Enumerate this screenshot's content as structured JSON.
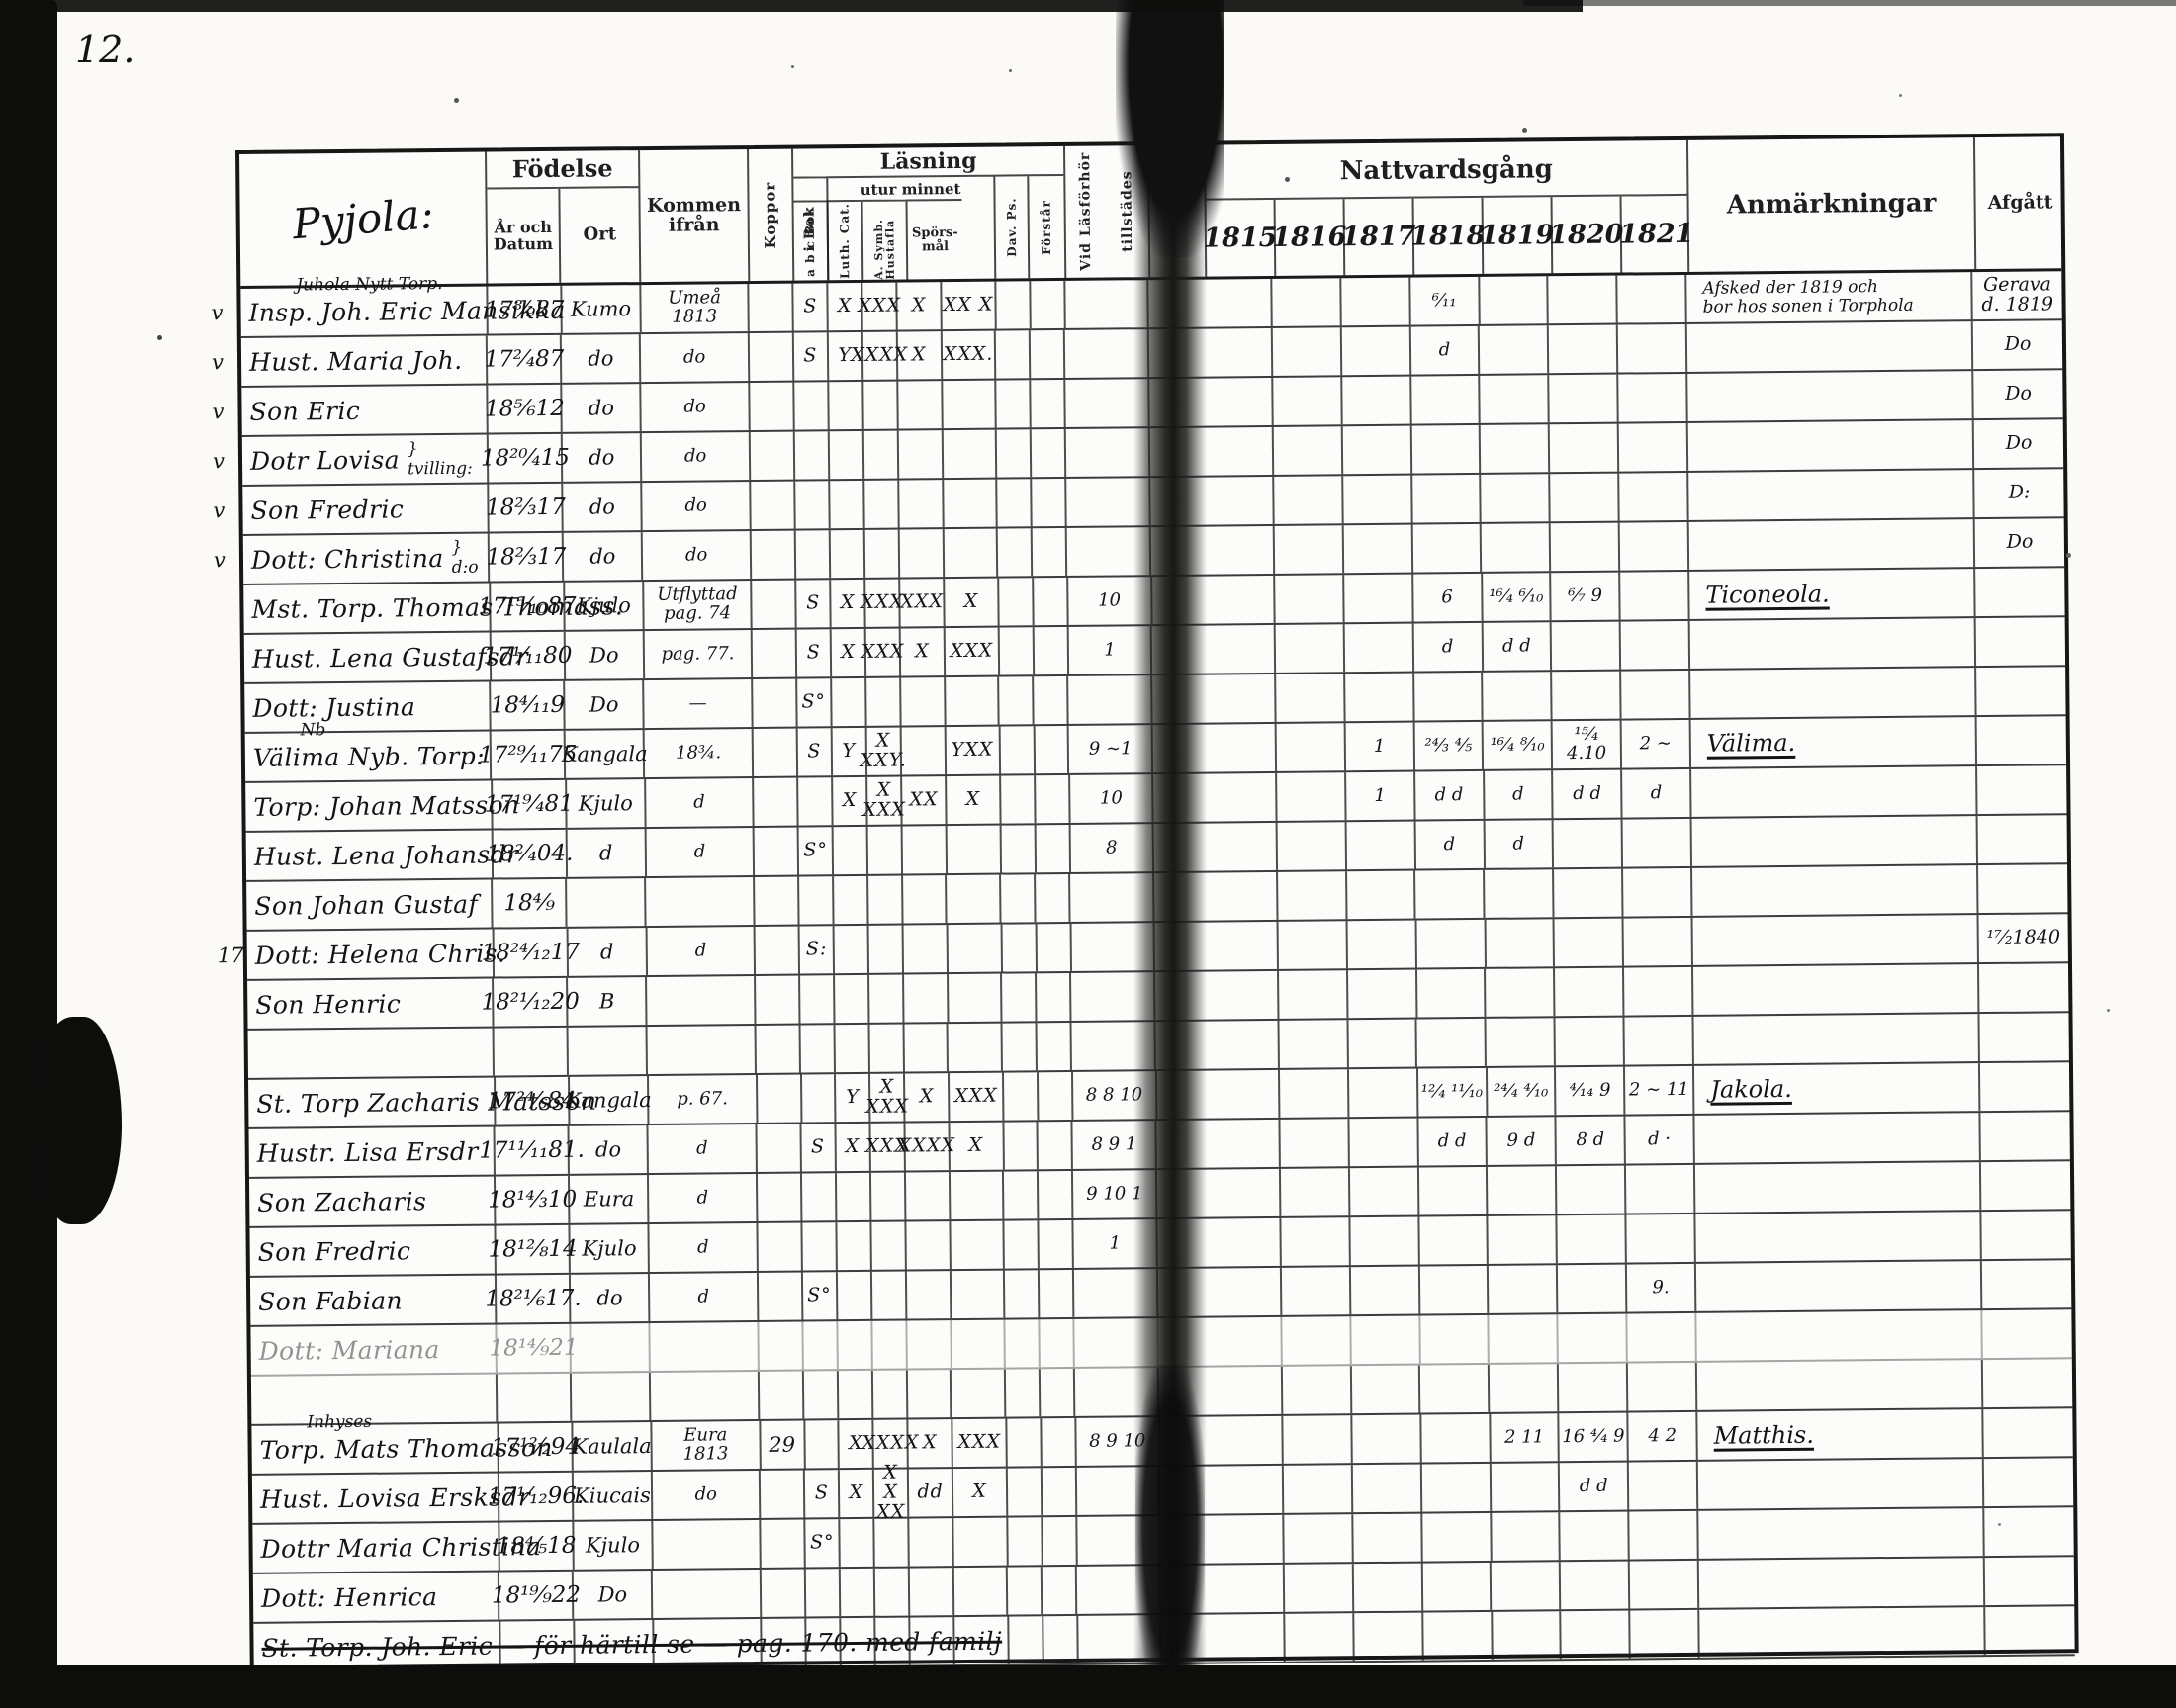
{
  "page_no": "12.",
  "header": {
    "village": "Pyjola:",
    "fodelse": "Födelse",
    "ar_och_datum": "År och\nDatum",
    "ort": "Ort",
    "kommen": "Kommen\nifrån",
    "koppor": "Koppor",
    "lasning": "Läsning",
    "i_bok": "i Bok",
    "utur_minnet": "utur minnet",
    "abc_bok": "a b c Bok",
    "cat": "Luth. Cat.",
    "symb": "A. Symb. Hustafla",
    "sporsmal": "Spörs-\nmål",
    "dav_ps": "Dav. Ps.",
    "forstar": "Förstår",
    "vid_las_1": "Vid Läsförhör",
    "vid_las_2": "tillstädes",
    "nattvard": "Nattvardsgång",
    "years": [
      "1815",
      "1816",
      "1817",
      "1818",
      "1819",
      "1820",
      "1821"
    ],
    "anmarkningar": "Anmärkningar",
    "afgatt": "Afgått"
  },
  "rows": [
    {
      "margin": "v",
      "above": "Juhola Nytt Torp.",
      "name": "Insp. Joh. Eric Mansikka",
      "datum": "17⁸⁄₉87",
      "ort": "Kumo",
      "kommen": "Umeå\n1813",
      "ibok": "S",
      "abc": "X",
      "cat": "XXX",
      "symb": "X",
      "spors": "XX X",
      "y1818": "⁶⁄₁₁",
      "anm": [
        "Afsked der 1819 och",
        "bor hos sonen i Torphola"
      ],
      "anm_small": true,
      "afgatt": "Gerava\nd. 1819"
    },
    {
      "margin": "v",
      "name": "Hust. Maria Joh.",
      "datum": "17²⁄₄87",
      "ort": "do",
      "kommen": "do",
      "ibok": "S",
      "abc": "Y",
      "cat": "XXXX",
      "symb": "X",
      "spors": "XXX.",
      "y1818": "d",
      "afgatt": "Do"
    },
    {
      "margin": "v",
      "name": "Son Eric",
      "datum": "18⁵⁄₆12",
      "ort": "do",
      "kommen": "do",
      "afgatt": "Do"
    },
    {
      "margin": "v",
      "name": "Dotr Lovisa",
      "brace": "tvilling:",
      "datum": "18²⁰⁄₄15",
      "ort": "do",
      "kommen": "do",
      "afgatt": "Do"
    },
    {
      "margin": "v",
      "name": "Son Fredric",
      "datum": "18²⁄₃17",
      "ort": "do",
      "kommen": "do",
      "afgatt": "D:"
    },
    {
      "margin": "v",
      "name": "Dott: Christina",
      "brace": "d:o",
      "datum": "18²⁄₃17",
      "ort": "do",
      "kommen": "do",
      "afgatt": "Do"
    },
    {
      "name": "Mst. Torp. Thomas Thomass.",
      "datum": "17¹⁵⁄₁₀87",
      "ort": "Kjulo",
      "kommen": "Utflyttad\npag. 74",
      "ibok": "S",
      "abc": "X",
      "cat": "XXX",
      "symb": "XXX",
      "spors": "X",
      "vidlas": "10",
      "y1818": "6",
      "y1819": "¹⁶⁄₄ ⁶⁄₁₀",
      "y1820": "⁶⁄₇ 9",
      "anm": [
        "Ticoneola."
      ],
      "anm_u": true
    },
    {
      "name": "Hust. Lena Gustafsdr",
      "datum": "17¹⁄₁₁80",
      "ort": "Do",
      "kommen": "pag. 77.",
      "ibok": "S",
      "abc": "X",
      "cat": "XXX",
      "symb": "X",
      "spors": "XXX",
      "vidlas": "1",
      "y1818": "d",
      "y1819": "d d"
    },
    {
      "name": "Dott: Justina",
      "datum": "18⁴⁄₁₁9",
      "ort": "Do",
      "kommen": "—",
      "ibok": "S°"
    },
    {
      "above": "Nb",
      "name": "Välima Nyb. Torp:",
      "datum": "17²⁹⁄₁₁75",
      "ort": "Kangala",
      "kommen": "18¾.",
      "ibok": "S",
      "abc": "Y",
      "cat": "X XXY.",
      "spors": "YXX",
      "vidlas": "9 ~1",
      "y1817": "1",
      "y1818": "²⁴⁄₃ ⅘",
      "y1819": "¹⁶⁄₄ ⁸⁄₁₀",
      "y1820": "¹⁵⁄₄ 4.10",
      "y1821": "2 ~",
      "anm": [
        "Välima."
      ],
      "anm_u": true
    },
    {
      "name": "Torp: Johan Matsson",
      "datum": "17¹⁹⁄₄81",
      "ort": "Kjulo",
      "kommen": "d",
      "abc": "X",
      "cat": "X XXX",
      "symb": "XX",
      "spors": "X",
      "vidlas": "10",
      "y1817": "1",
      "y1818": "d d",
      "y1819": "d",
      "y1820": "d d",
      "y1821": "d"
    },
    {
      "name": "Hust. Lena Johansdr",
      "datum": "18²⁄₄04.",
      "ort": "d",
      "kommen": "d",
      "ibok": "S°",
      "vidlas": "8",
      "y1818": "d",
      "y1819": "d"
    },
    {
      "name": "Son Johan Gustaf",
      "datum": "18⁴⁄₉"
    },
    {
      "margin": "17",
      "name": "Dott: Helena Chris.",
      "datum": "18²⁴⁄₁₂17",
      "ort": "d",
      "kommen": "d",
      "ibok": "S:",
      "afgatt": "¹⁷⁄₂1840"
    },
    {
      "name": "Son Henric",
      "datum": "18²¹⁄₁₂20",
      "ort": "B"
    },
    {},
    {
      "name": "St. Torp Zacharis Matsson",
      "datum": "17²⁴⁄₆84",
      "ort": "Kangala",
      "kommen": "p. 67.",
      "abc": "Y",
      "cat": "X XXX",
      "symb": "X",
      "spors": "XXX",
      "vidlas": "8 8 10",
      "y1818": "¹²⁄₄ ¹¹⁄₁₀",
      "y1819": "²⁴⁄₄ ⁴⁄₁₀",
      "y1820": "⁴⁄₁₄ 9",
      "y1821": "2 ~ 11",
      "anm": [
        "Jakola."
      ],
      "anm_u": true
    },
    {
      "name": "Hustr. Lisa Ersdr",
      "datum": "17¹¹⁄₁₁81.",
      "ort": "do",
      "kommen": "d",
      "ibok": "S",
      "abc": "X",
      "cat": "XXX",
      "symb": "XXXX",
      "spors": "X",
      "vidlas": "8 9 1",
      "y1818": "d d",
      "y1819": "9 d",
      "y1820": "8 d",
      "y1821": "d ·"
    },
    {
      "name": "Son Zacharis",
      "datum": "18¹⁴⁄₃10",
      "ort": "Eura",
      "kommen": "d",
      "vidlas": "9 10 1"
    },
    {
      "name": "Son Fredric",
      "datum": "18¹²⁄₈14",
      "ort": "Kjulo",
      "kommen": "d",
      "vidlas": "1"
    },
    {
      "name": "Son Fabian",
      "datum": "18²¹⁄₆17.",
      "ort": "do",
      "kommen": "d",
      "ibok": "S°",
      "y1821": "9."
    },
    {
      "faint": true,
      "name": "Dott: Mariana",
      "datum": "18¹⁴⁄₉21"
    },
    {},
    {
      "above": "Inhyses",
      "name": "Torp. Mats Thomasson",
      "datum": "17¹²⁄₂94",
      "ort": "Kaulala",
      "kommen": "Eura\n1813",
      "koppor": "29",
      "abc": "X",
      "cat": "XXXX",
      "symb": "X",
      "spors": "XXX",
      "vidlas": "8 9 10",
      "y1819": "2 11",
      "y1820": "16 ⁴⁄₄ 9",
      "y1821": "4 2",
      "anm": [
        "Matthis."
      ],
      "anm_u": true
    },
    {
      "name": "Hust. Lovisa Ersksdr",
      "datum": "17¹⁄₁₂96.",
      "ort": "Kiucais",
      "kommen": "do",
      "ibok": "S",
      "abc": "X",
      "cat": "X X XX",
      "symb": "dd",
      "spors": "X",
      "y1820": "d d"
    },
    {
      "name": "Dottr Maria Christina",
      "datum": "18⁴⁄₅18",
      "ort": "Kjulo",
      "ibok": "S°"
    },
    {
      "name": "Dott: Henrica",
      "datum": "18¹⁹⁄₉22",
      "ort": "Do"
    },
    {
      "struck": true,
      "name": "St. Torp. Joh. Eric — för härtill se — pag. 170. med familj"
    }
  ]
}
